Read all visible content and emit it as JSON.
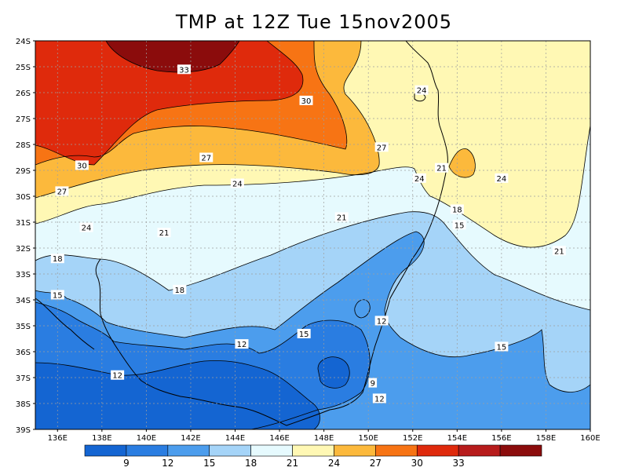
{
  "title": "TMP at 12Z Tue 15nov2005",
  "map": {
    "lat_labels": [
      "24S",
      "25S",
      "26S",
      "27S",
      "28S",
      "29S",
      "30S",
      "31S",
      "32S",
      "33S",
      "34S",
      "35S",
      "36S",
      "37S",
      "38S",
      "39S"
    ],
    "lon_labels": [
      "136E",
      "138E",
      "140E",
      "142E",
      "144E",
      "146E",
      "148E",
      "150E",
      "152E",
      "154E",
      "156E",
      "158E",
      "160E"
    ],
    "contour_labels": [
      {
        "text": "33",
        "lon": 141.7,
        "lat": -25.1
      },
      {
        "text": "30",
        "lon": 137.1,
        "lat": -28.8
      },
      {
        "text": "30",
        "lon": 147.2,
        "lat": -26.3
      },
      {
        "text": "27",
        "lon": 136.2,
        "lat": -29.8
      },
      {
        "text": "27",
        "lon": 142.7,
        "lat": -28.5
      },
      {
        "text": "27",
        "lon": 150.6,
        "lat": -28.1
      },
      {
        "text": "24",
        "lon": 137.3,
        "lat": -31.2
      },
      {
        "text": "24",
        "lon": 144.1,
        "lat": -29.5
      },
      {
        "text": "24",
        "lon": 152.4,
        "lat": -25.9
      },
      {
        "text": "24",
        "lon": 152.3,
        "lat": -29.3
      },
      {
        "text": "24",
        "lon": 156.0,
        "lat": -29.3
      },
      {
        "text": "21",
        "lon": 140.8,
        "lat": -31.4
      },
      {
        "text": "21",
        "lon": 148.8,
        "lat": -30.8
      },
      {
        "text": "21",
        "lon": 153.3,
        "lat": -28.9
      },
      {
        "text": "21",
        "lon": 158.6,
        "lat": -32.1
      },
      {
        "text": "18",
        "lon": 136.0,
        "lat": -32.4
      },
      {
        "text": "18",
        "lon": 141.5,
        "lat": -33.6
      },
      {
        "text": "18",
        "lon": 154.0,
        "lat": -30.5
      },
      {
        "text": "15",
        "lon": 136.0,
        "lat": -33.8
      },
      {
        "text": "15",
        "lon": 147.1,
        "lat": -35.3
      },
      {
        "text": "15",
        "lon": 154.1,
        "lat": -31.1
      },
      {
        "text": "15",
        "lon": 156.0,
        "lat": -35.8
      },
      {
        "text": "12",
        "lon": 144.3,
        "lat": -35.7
      },
      {
        "text": "12",
        "lon": 138.7,
        "lat": -36.9
      },
      {
        "text": "12",
        "lon": 150.6,
        "lat": -34.8
      },
      {
        "text": "12",
        "lon": 150.5,
        "lat": -37.8
      },
      {
        "text": "9",
        "lon": 150.2,
        "lat": -37.2
      }
    ]
  },
  "colorbar": {
    "labels": [
      "9",
      "12",
      "15",
      "18",
      "21",
      "24",
      "27",
      "30",
      "33"
    ],
    "colors": [
      "#1465d2",
      "#2a7de1",
      "#4c9ded",
      "#a5d4f8",
      "#e6fafe",
      "#fff8b4",
      "#fcb93c",
      "#f77414",
      "#df2a0c",
      "#b71c1c",
      "#8b0c0c"
    ]
  }
}
